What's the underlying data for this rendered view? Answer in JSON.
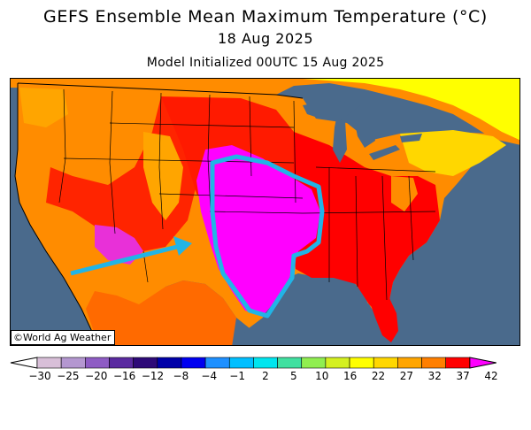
{
  "title": "GEFS Ensemble Mean Maximum Temperature (°C)",
  "valid_date": "18 Aug 2025",
  "model_init": "Model Initialized 00UTC 15 Aug 2025",
  "credit": "©World Ag Weather",
  "legend": {
    "ticks": [
      "−30",
      "−25",
      "−20",
      "−16",
      "−12",
      "−8",
      "−4",
      "−1",
      "2",
      "5",
      "10",
      "16",
      "22",
      "27",
      "32",
      "37",
      "42"
    ],
    "colors": [
      "#ffffff",
      "#d8bfd8",
      "#b497d0",
      "#8e5cc4",
      "#5a2aa0",
      "#2e0a78",
      "#0000a8",
      "#0000f0",
      "#1e90ff",
      "#00bfff",
      "#00e5ee",
      "#40e0a0",
      "#90ee50",
      "#d4f020",
      "#ffff00",
      "#ffd700",
      "#ffa500",
      "#ff7f00",
      "#ff0000",
      "#ff00ff"
    ]
  },
  "map_colors": {
    "ocean": "#4a6a8c",
    "land_cool": "#ffff00",
    "land_warm": "#ffd700",
    "land_hot": "#ff8c00",
    "land_veryhot": "#ff0000",
    "land_extreme": "#ff00ff",
    "annotation": "#22b4e6"
  }
}
